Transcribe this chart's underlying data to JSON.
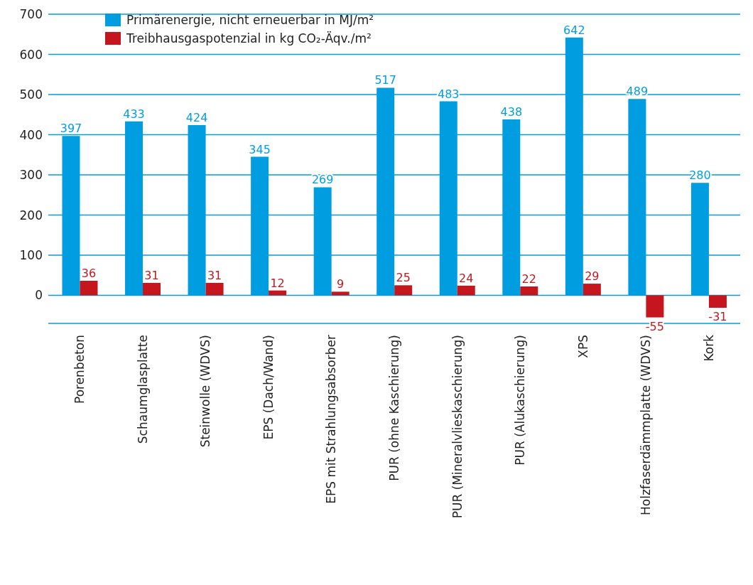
{
  "chart_data": {
    "type": "bar",
    "categories": [
      "Porenbeton",
      "Schaumglasplatte",
      "Steinwolle (WDVS)",
      "EPS (Dach/Wand)",
      "EPS mit Strahlungsabsorber",
      "PUR (ohne Kaschierung)",
      "PUR (Mineralvlieskaschierung)",
      "PUR (Alukaschierung)",
      "XPS",
      "Holzfaserdämmplatte (WDVS)",
      "Kork"
    ],
    "series": [
      {
        "name": "Primärenergie, nicht erneuerbar in MJ/m²",
        "color": "#009ee0",
        "values": [
          397,
          433,
          424,
          345,
          269,
          517,
          483,
          438,
          642,
          489,
          280
        ]
      },
      {
        "name": "Treibhausgaspotenzial in kg CO₂-Äqv./m²",
        "color": "#c4161c",
        "values": [
          36,
          31,
          31,
          12,
          9,
          25,
          24,
          22,
          29,
          -55,
          -31
        ]
      }
    ],
    "ylim": [
      -70,
      700
    ],
    "yticks": [
      0,
      100,
      200,
      300,
      400,
      500,
      600,
      700
    ],
    "grid": "y",
    "legend": "top left",
    "data_labels": true
  }
}
